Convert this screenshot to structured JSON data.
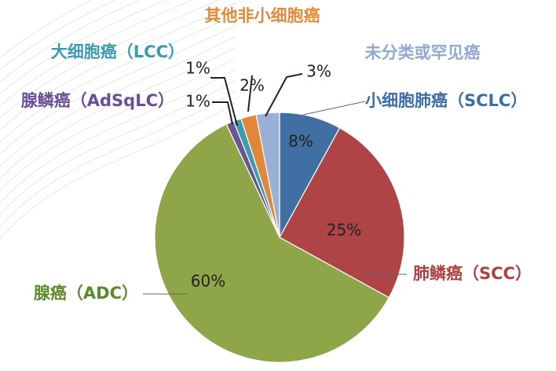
{
  "chart_data": {
    "type": "pie",
    "title": "",
    "slices": [
      {
        "label": "小细胞肺癌（SCLC）",
        "value": 8,
        "value_label": "8%",
        "color": "#3f6fa3",
        "label_color": "#3b6ea6"
      },
      {
        "label": "肺鳞癌（SCC）",
        "value": 25,
        "value_label": "25%",
        "color": "#ae4445",
        "label_color": "#b0403f"
      },
      {
        "label": "腺癌（ADC）",
        "value": 60,
        "value_label": "60%",
        "color": "#8ea647",
        "label_color": "#5c8a2a"
      },
      {
        "label": "腺鳞癌（AdSqLC）",
        "value": 1,
        "value_label": "1%",
        "color": "#6b5595",
        "label_color": "#6a4f96"
      },
      {
        "label": "大细胞癌（LCC）",
        "value": 1,
        "value_label": "1%",
        "color": "#3d9bb0",
        "label_color": "#3e9aaf"
      },
      {
        "label": "其他非小细胞癌",
        "value": 2,
        "value_label": "2%",
        "color": "#e0873a",
        "label_color": "#e18a3b"
      },
      {
        "label": "未分类或罕见癌",
        "value": 3,
        "value_label": "3%",
        "color": "#9bb0d6",
        "label_color": "#93a9d2"
      }
    ]
  }
}
